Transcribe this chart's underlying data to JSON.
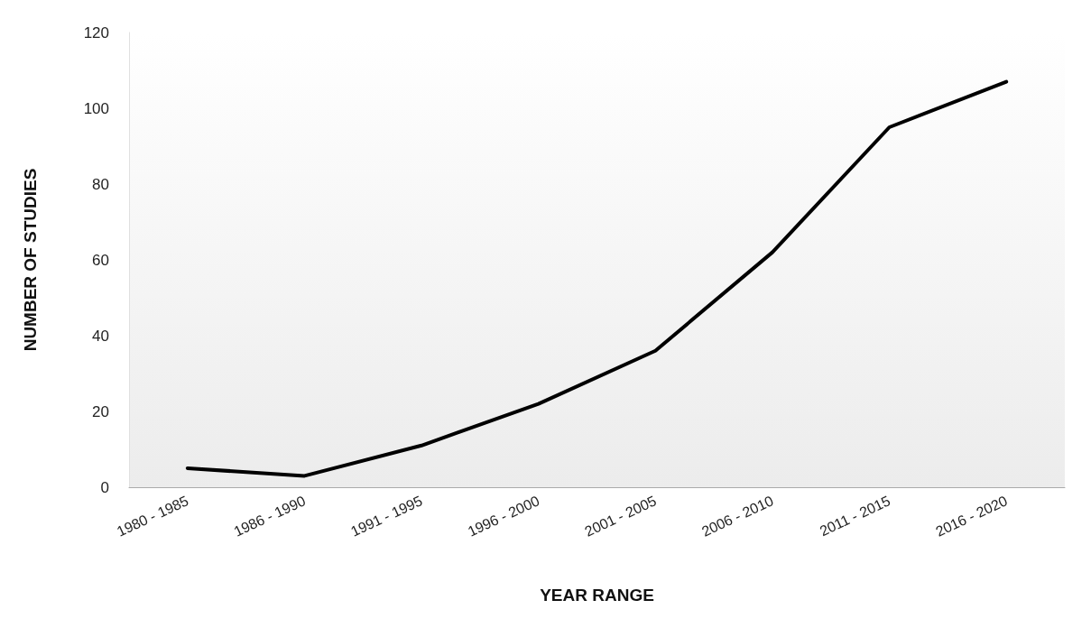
{
  "chart_data": {
    "type": "line",
    "xlabel": "YEAR RANGE",
    "ylabel": "NUMBER OF STUDIES",
    "categories": [
      "1980 - 1985",
      "1986 - 1990",
      "1991 - 1995",
      "1996 - 2000",
      "2001 - 2005",
      "2006 - 2010",
      "2011 - 2015",
      "2016 - 2020"
    ],
    "series": [
      {
        "color": "#000000",
        "values": [
          5,
          3,
          11,
          22,
          36,
          62,
          95,
          107
        ]
      }
    ],
    "ylim": [
      0,
      120
    ],
    "yticks": [
      0,
      20,
      40,
      60,
      80,
      100,
      120
    ],
    "grid": false,
    "marker": "none",
    "line_style": "solid"
  }
}
